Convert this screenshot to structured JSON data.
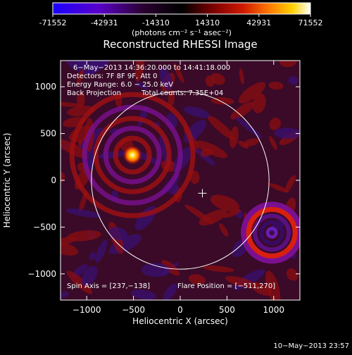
{
  "colorbar": {
    "tick_labels": [
      "-71552",
      "-42931",
      "-14310",
      "14310",
      "42931",
      "71552"
    ],
    "tick_values": [
      -71552,
      -42931,
      -14310,
      14310,
      42931,
      71552
    ],
    "range": [
      -71552,
      71552
    ],
    "unit_label": "(photons cm⁻² s⁻¹ asec⁻²)",
    "colors": [
      "#1a00ff",
      "#5a00c8",
      "#2a0030",
      "#000000",
      "#7a0000",
      "#d01a00",
      "#ff7a00",
      "#ffd000",
      "#ffffff"
    ]
  },
  "chart_data": {
    "type": "heatmap",
    "title": "Reconstructed RHESSI Image",
    "xlabel": "Heliocentric X (arcsec)",
    "ylabel": "Heliocentric Y (arcsec)",
    "xlim": [
      -1280,
      1280
    ],
    "ylim": [
      -1280,
      1280
    ],
    "xticks": [
      -1000,
      -500,
      0,
      500,
      1000
    ],
    "yticks": [
      1000,
      500,
      0,
      -500,
      -1000
    ],
    "xtick_labels": [
      "−1000",
      "−500",
      "0",
      "500",
      "1000"
    ],
    "ytick_labels": [
      "1000",
      "500",
      "0",
      "−500",
      "−1000"
    ],
    "annotations": [
      "6−May−2013 14:36:20.000 to 14:41:18.000",
      "Detectors: 7F 8F 9F, Att 0",
      "Energy Range: 6.0 − 25.0 keV",
      "Back Projection",
      "Total counts: 7.35E+04"
    ],
    "spin_axis_text": "Spin Axis = [237,−138]",
    "flare_position_text": "Flare Position = [−511,270]",
    "solar_disk": {
      "center": [
        0,
        0
      ],
      "radius_arcsec": 950
    },
    "spin_axis": [
      237,
      -138
    ],
    "sources": [
      {
        "name": "flare",
        "x": -511,
        "y": 270,
        "type": "bright"
      },
      {
        "name": "ring",
        "x": 980,
        "y": -560,
        "type": "ring"
      }
    ]
  },
  "timestamp": "10−May−2013 23:57"
}
